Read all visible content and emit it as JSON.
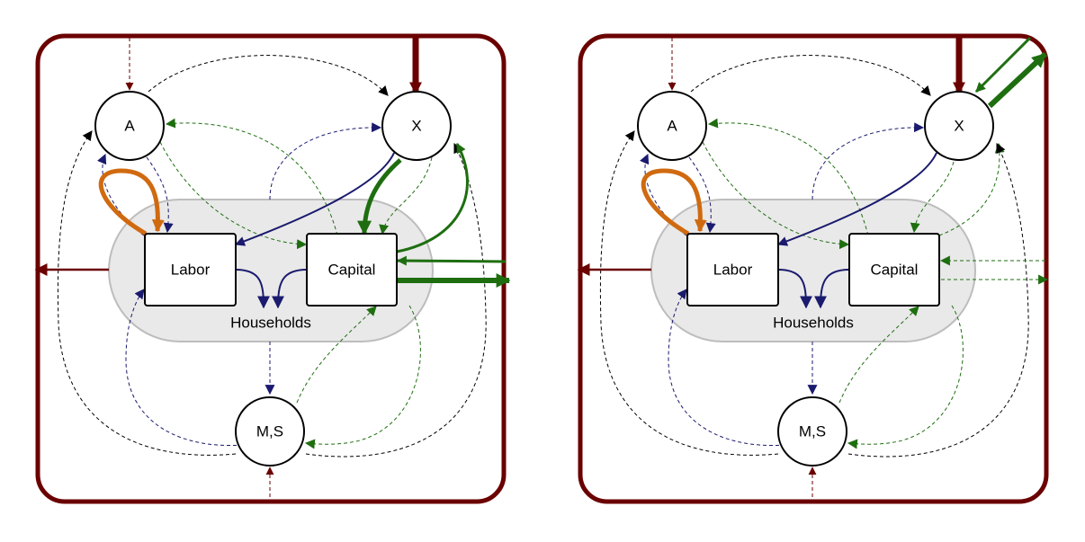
{
  "diagrams": [
    {
      "nodes": {
        "A": "A",
        "X": "X",
        "MS": "M,S",
        "labor": "Labor",
        "capital": "Capital",
        "households": "Households"
      }
    },
    {
      "nodes": {
        "A": "A",
        "X": "X",
        "MS": "M,S",
        "labor": "Labor",
        "capital": "Capital",
        "households": "Households"
      }
    }
  ],
  "colors": {
    "frame": "#6b0000",
    "labor_flow": "#1a1a6e",
    "capital_flow": "#1e6e10",
    "self_loop": "#d06a10",
    "generic": "#000000",
    "households_fill": "#e9e9e9",
    "households_stroke": "#bdbdbd"
  }
}
